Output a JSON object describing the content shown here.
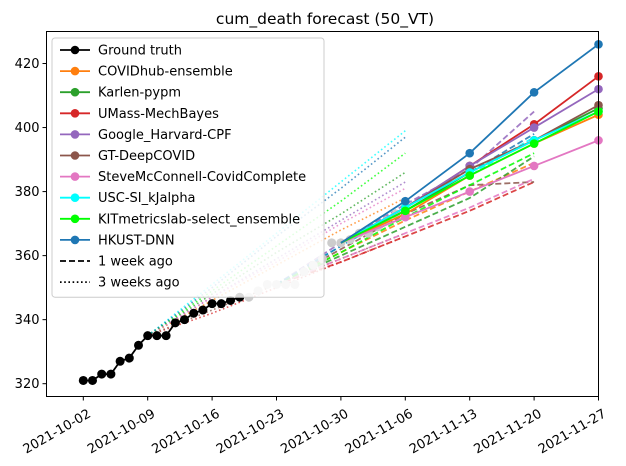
{
  "chart_data": {
    "type": "line",
    "title": "cum_death forecast (50_VT)",
    "xlabel": "",
    "ylabel": "",
    "x_range": [
      "2021-09-28",
      "2021-11-27"
    ],
    "ylim": [
      316,
      430
    ],
    "x_ticks": [
      "2021-10-02",
      "2021-10-09",
      "2021-10-16",
      "2021-10-23",
      "2021-10-30",
      "2021-11-06",
      "2021-11-13",
      "2021-11-20",
      "2021-11-27"
    ],
    "y_ticks": [
      320,
      340,
      360,
      380,
      400,
      420
    ],
    "grid": false,
    "legend_position": "upper-left",
    "colors": {
      "Ground truth": "#000000",
      "COVIDhub-ensemble": "#ff7f0e",
      "Karlen-pypm": "#2ca02c",
      "UMass-MechBayes": "#d62728",
      "Google_Harvard-CPF": "#9467bd",
      "GT-DeepCOVID": "#8c564b",
      "SteveMcConnell-CovidComplete": "#e377c2",
      "USC-SI_kJalpha": "#00ffff",
      "KITmetricslab-select_ensemble": "#00ff00",
      "HKUST-DNN": "#1f77b4"
    },
    "legend": [
      {
        "label": "Ground truth",
        "style": "marker"
      },
      {
        "label": "COVIDhub-ensemble",
        "style": "marker"
      },
      {
        "label": "Karlen-pypm",
        "style": "marker"
      },
      {
        "label": "UMass-MechBayes",
        "style": "marker"
      },
      {
        "label": "Google_Harvard-CPF",
        "style": "marker"
      },
      {
        "label": "GT-DeepCOVID",
        "style": "marker"
      },
      {
        "label": "SteveMcConnell-CovidComplete",
        "style": "marker"
      },
      {
        "label": "USC-SI_kJalpha",
        "style": "marker"
      },
      {
        "label": "KITmetricslab-select_ensemble",
        "style": "marker"
      },
      {
        "label": "HKUST-DNN",
        "style": "marker"
      },
      {
        "label": "1 week ago",
        "style": "dashed"
      },
      {
        "label": "3 weeks ago",
        "style": "dotted"
      }
    ],
    "ground_truth": {
      "name": "Ground truth",
      "black": [
        [
          "2021-10-02",
          321
        ],
        [
          "2021-10-03",
          321
        ],
        [
          "2021-10-04",
          323
        ],
        [
          "2021-10-05",
          323
        ],
        [
          "2021-10-06",
          327
        ],
        [
          "2021-10-07",
          328
        ],
        [
          "2021-10-08",
          332
        ],
        [
          "2021-10-09",
          335
        ],
        [
          "2021-10-10",
          335
        ],
        [
          "2021-10-11",
          335
        ],
        [
          "2021-10-12",
          339
        ],
        [
          "2021-10-13",
          340
        ],
        [
          "2021-10-14",
          342
        ],
        [
          "2021-10-15",
          343
        ],
        [
          "2021-10-16",
          345
        ],
        [
          "2021-10-17",
          345
        ],
        [
          "2021-10-18",
          346
        ],
        [
          "2021-10-19",
          347
        ]
      ],
      "grey": [
        [
          "2021-10-20",
          347
        ],
        [
          "2021-10-21",
          349
        ],
        [
          "2021-10-22",
          351
        ],
        [
          "2021-10-23",
          351
        ],
        [
          "2021-10-24",
          351
        ],
        [
          "2021-10-25",
          351
        ],
        [
          "2021-10-26",
          355
        ],
        [
          "2021-10-27",
          357
        ],
        [
          "2021-10-28",
          359
        ],
        [
          "2021-10-29",
          364
        ],
        [
          "2021-10-30",
          364
        ],
        [
          "2021-10-31",
          365
        ],
        [
          "2021-11-01",
          367
        ],
        [
          "2021-11-02",
          367
        ],
        [
          "2021-11-03",
          369
        ],
        [
          "2021-11-04",
          371
        ],
        [
          "2021-11-05",
          373
        ],
        [
          "2021-11-06",
          374
        ]
      ]
    },
    "forecast_dates": [
      "2021-10-30",
      "2021-11-06",
      "2021-11-13",
      "2021-11-20",
      "2021-11-27"
    ],
    "forecasts_current": [
      {
        "name": "COVIDhub-ensemble",
        "values": [
          364,
          373,
          385,
          395,
          404
        ]
      },
      {
        "name": "Karlen-pypm",
        "values": [
          364,
          374,
          386,
          396,
          406
        ]
      },
      {
        "name": "UMass-MechBayes",
        "values": [
          364,
          375,
          388,
          401,
          416
        ]
      },
      {
        "name": "Google_Harvard-CPF",
        "values": [
          364,
          375,
          388,
          400,
          412
        ]
      },
      {
        "name": "GT-DeepCOVID",
        "values": [
          364,
          375,
          387,
          396,
          407
        ]
      },
      {
        "name": "SteveMcConnell-CovidComplete",
        "values": [
          364,
          372,
          380,
          388,
          396
        ]
      },
      {
        "name": "USC-SI_kJalpha",
        "values": [
          364,
          375,
          386,
          396,
          405
        ]
      },
      {
        "name": "KITmetricslab-select_ensemble",
        "values": [
          364,
          374,
          385,
          395,
          405
        ]
      },
      {
        "name": "HKUST-DNN",
        "values": [
          364,
          377,
          392,
          411,
          426
        ]
      }
    ],
    "forecasts_1_week_ago": {
      "dates": [
        "2021-10-23",
        "2021-10-30",
        "2021-11-06",
        "2021-11-13",
        "2021-11-20"
      ],
      "series": [
        {
          "name": "COVIDhub-ensemble",
          "values": [
            351,
            361,
            371,
            380,
            389
          ]
        },
        {
          "name": "Karlen-pypm",
          "values": [
            351,
            360,
            369,
            378,
            391
          ]
        },
        {
          "name": "UMass-MechBayes",
          "values": [
            351,
            358,
            366,
            374,
            383
          ]
        },
        {
          "name": "Google_Harvard-CPF",
          "values": [
            351,
            364,
            376,
            387,
            405
          ]
        },
        {
          "name": "GT-DeepCOVID",
          "values": [
            351,
            362,
            373,
            382,
            383
          ]
        },
        {
          "name": "SteveMcConnell-CovidComplete",
          "values": [
            351,
            359,
            367,
            375,
            384
          ]
        },
        {
          "name": "USC-SI_kJalpha",
          "values": [
            351,
            363,
            374,
            385,
            397
          ]
        },
        {
          "name": "KITmetricslab-select_ensemble",
          "values": [
            351,
            361,
            372,
            382,
            392
          ]
        },
        {
          "name": "HKUST-DNN",
          "values": [
            351,
            363,
            375,
            386,
            398
          ]
        }
      ]
    },
    "forecasts_3_weeks_ago": {
      "dates": [
        "2021-10-09",
        "2021-10-16",
        "2021-10-23",
        "2021-10-30",
        "2021-11-06"
      ],
      "series": [
        {
          "name": "COVIDhub-ensemble",
          "values": [
            335,
            346,
            357,
            368,
            378
          ]
        },
        {
          "name": "Karlen-pypm",
          "values": [
            335,
            348,
            361,
            373,
            386
          ]
        },
        {
          "name": "UMass-MechBayes",
          "values": [
            335,
            342,
            350,
            358,
            366
          ]
        },
        {
          "name": "Google_Harvard-CPF",
          "values": [
            335,
            347,
            359,
            371,
            383
          ]
        },
        {
          "name": "GT-DeepCOVID",
          "values": [
            335,
            343,
            351,
            359,
            367
          ]
        },
        {
          "name": "SteveMcConnell-CovidComplete",
          "values": [
            335,
            347,
            358,
            370,
            381
          ]
        },
        {
          "name": "USC-SI_kJalpha",
          "values": [
            335,
            351,
            367,
            383,
            399
          ]
        },
        {
          "name": "KITmetricslab-select_ensemble",
          "values": [
            335,
            349,
            363,
            377,
            392
          ]
        },
        {
          "name": "HKUST-DNN",
          "values": [
            335,
            350,
            366,
            381,
            397
          ]
        }
      ]
    }
  }
}
